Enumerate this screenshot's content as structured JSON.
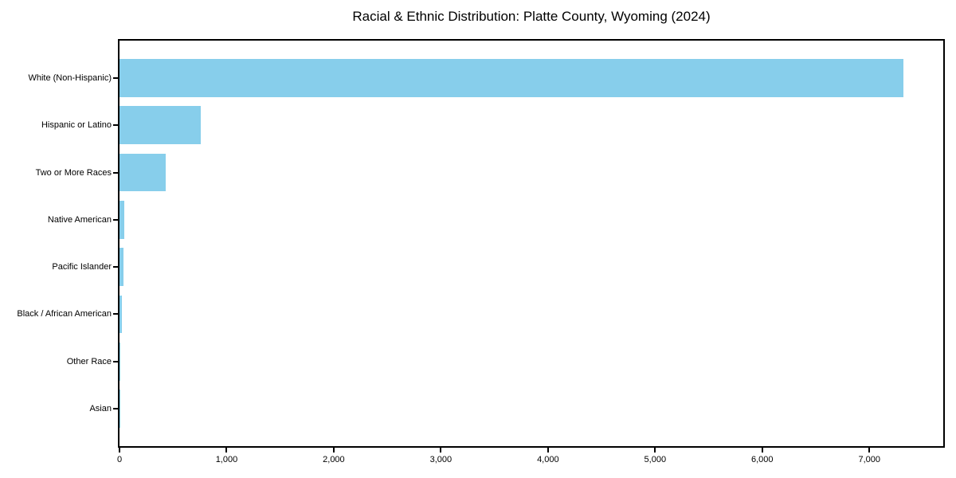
{
  "chart_data": {
    "type": "bar",
    "orientation": "horizontal",
    "title": "Racial & Ethnic Distribution: Platte County, Wyoming (2024)",
    "categories": [
      "White (Non-Hispanic)",
      "Hispanic or Latino",
      "Two or More Races",
      "Native American",
      "Pacific Islander",
      "Black / African American",
      "Other Race",
      "Asian"
    ],
    "values": [
      7320,
      755,
      435,
      45,
      40,
      25,
      7,
      3
    ],
    "xlabel": "",
    "ylabel": "",
    "xlim": [
      0,
      7690
    ],
    "xticks": [
      0,
      1000,
      2000,
      3000,
      4000,
      5000,
      6000,
      7000
    ],
    "xtick_labels": [
      "0",
      "1,000",
      "2,000",
      "3,000",
      "4,000",
      "5,000",
      "6,000",
      "7,000"
    ],
    "bar_color": "#87CEEB",
    "axis_color": "#000000",
    "text_color": "#000000",
    "background_color": "#FFFFFF",
    "grid": false,
    "legend": "none",
    "sort_order": "descending"
  }
}
